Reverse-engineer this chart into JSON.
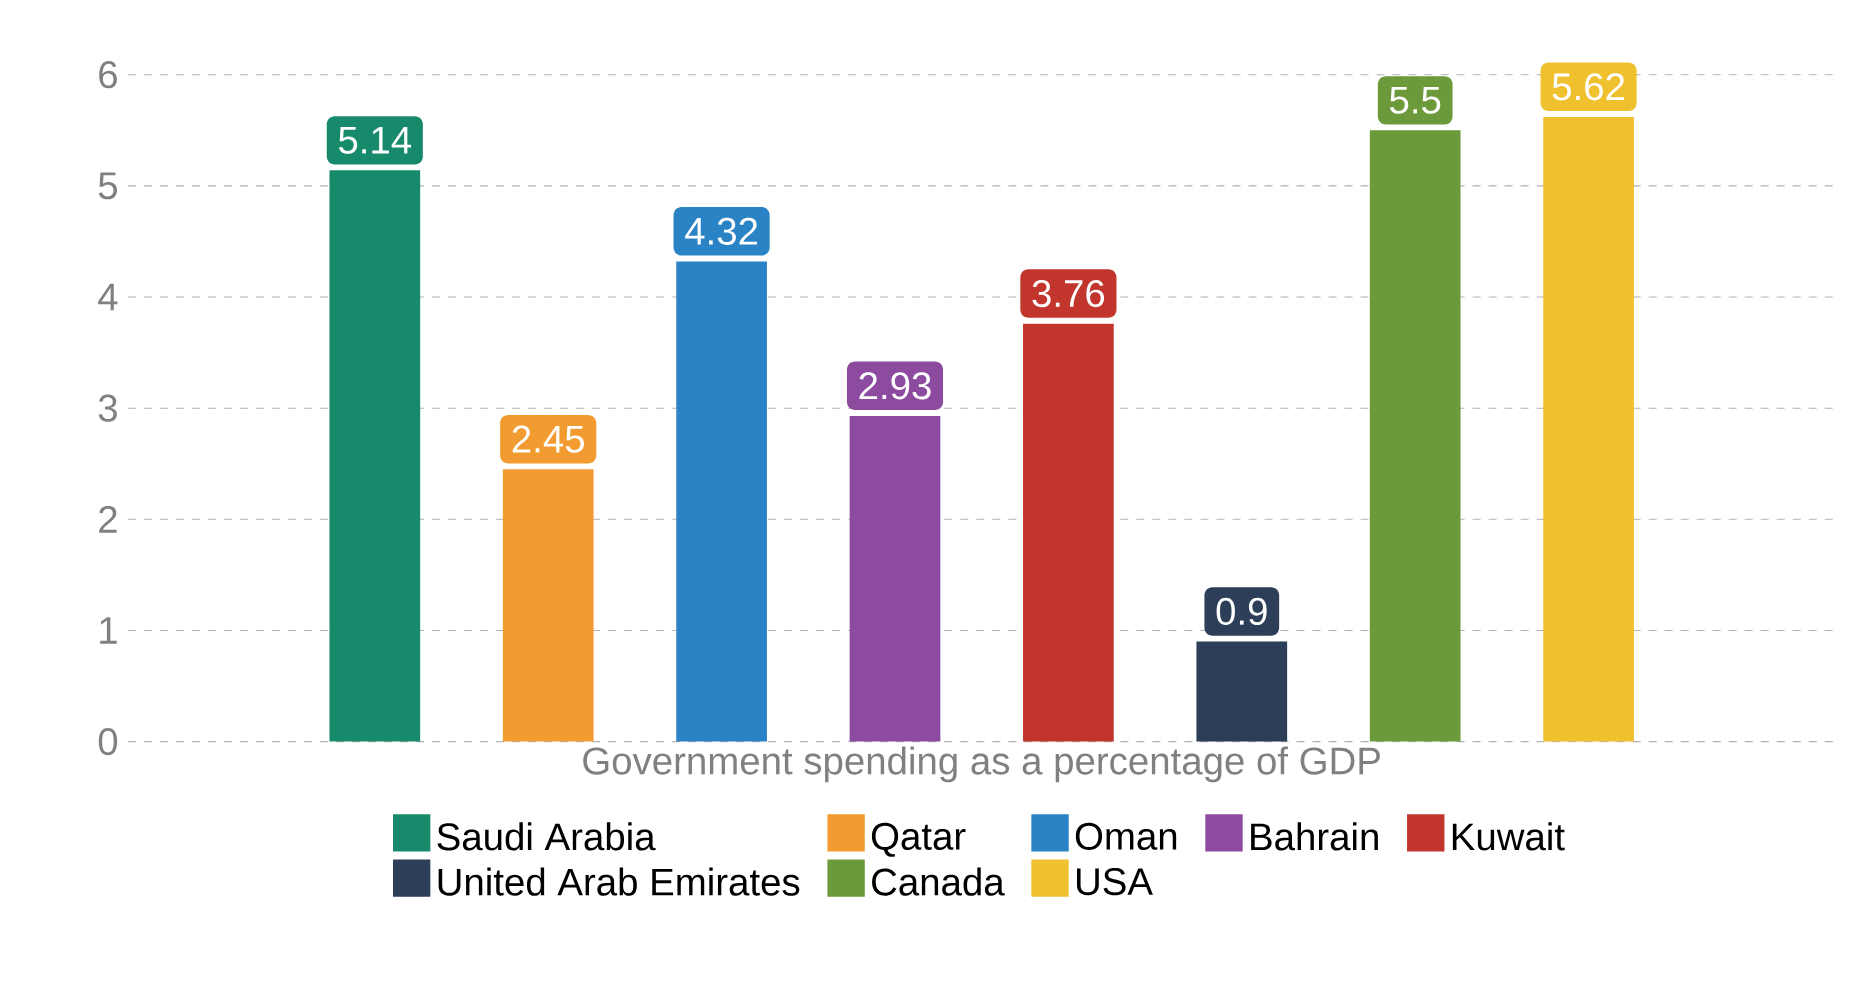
{
  "chart_data": {
    "type": "bar",
    "xlabel": "Government spending as a percentage of GDP",
    "categories": [
      null
    ],
    "series": [
      {
        "name": "Saudi Arabia",
        "color": "#188a6c",
        "values": [
          5.14
        ]
      },
      {
        "name": "Qatar",
        "color": "#f29b30",
        "values": [
          2.45
        ]
      },
      {
        "name": "Oman",
        "color": "#2a83c5",
        "values": [
          4.32
        ]
      },
      {
        "name": "Bahrain",
        "color": "#8c4b9f",
        "values": [
          2.93
        ]
      },
      {
        "name": "Kuwait",
        "color": "#c2352c",
        "values": [
          3.76
        ]
      },
      {
        "name": "United Arab Emirates",
        "color": "#2d3e58",
        "values": [
          0.9
        ]
      },
      {
        "name": "Canada",
        "color": "#6c9a3a",
        "values": [
          5.5
        ]
      },
      {
        "name": "USA",
        "color": "#efc12e",
        "values": [
          5.62
        ]
      }
    ],
    "ylim": [
      0,
      6
    ],
    "yticks": [
      0,
      1,
      2,
      3,
      4,
      5,
      6
    ],
    "grid": "y",
    "legend": "bottom",
    "data_labels": true
  }
}
